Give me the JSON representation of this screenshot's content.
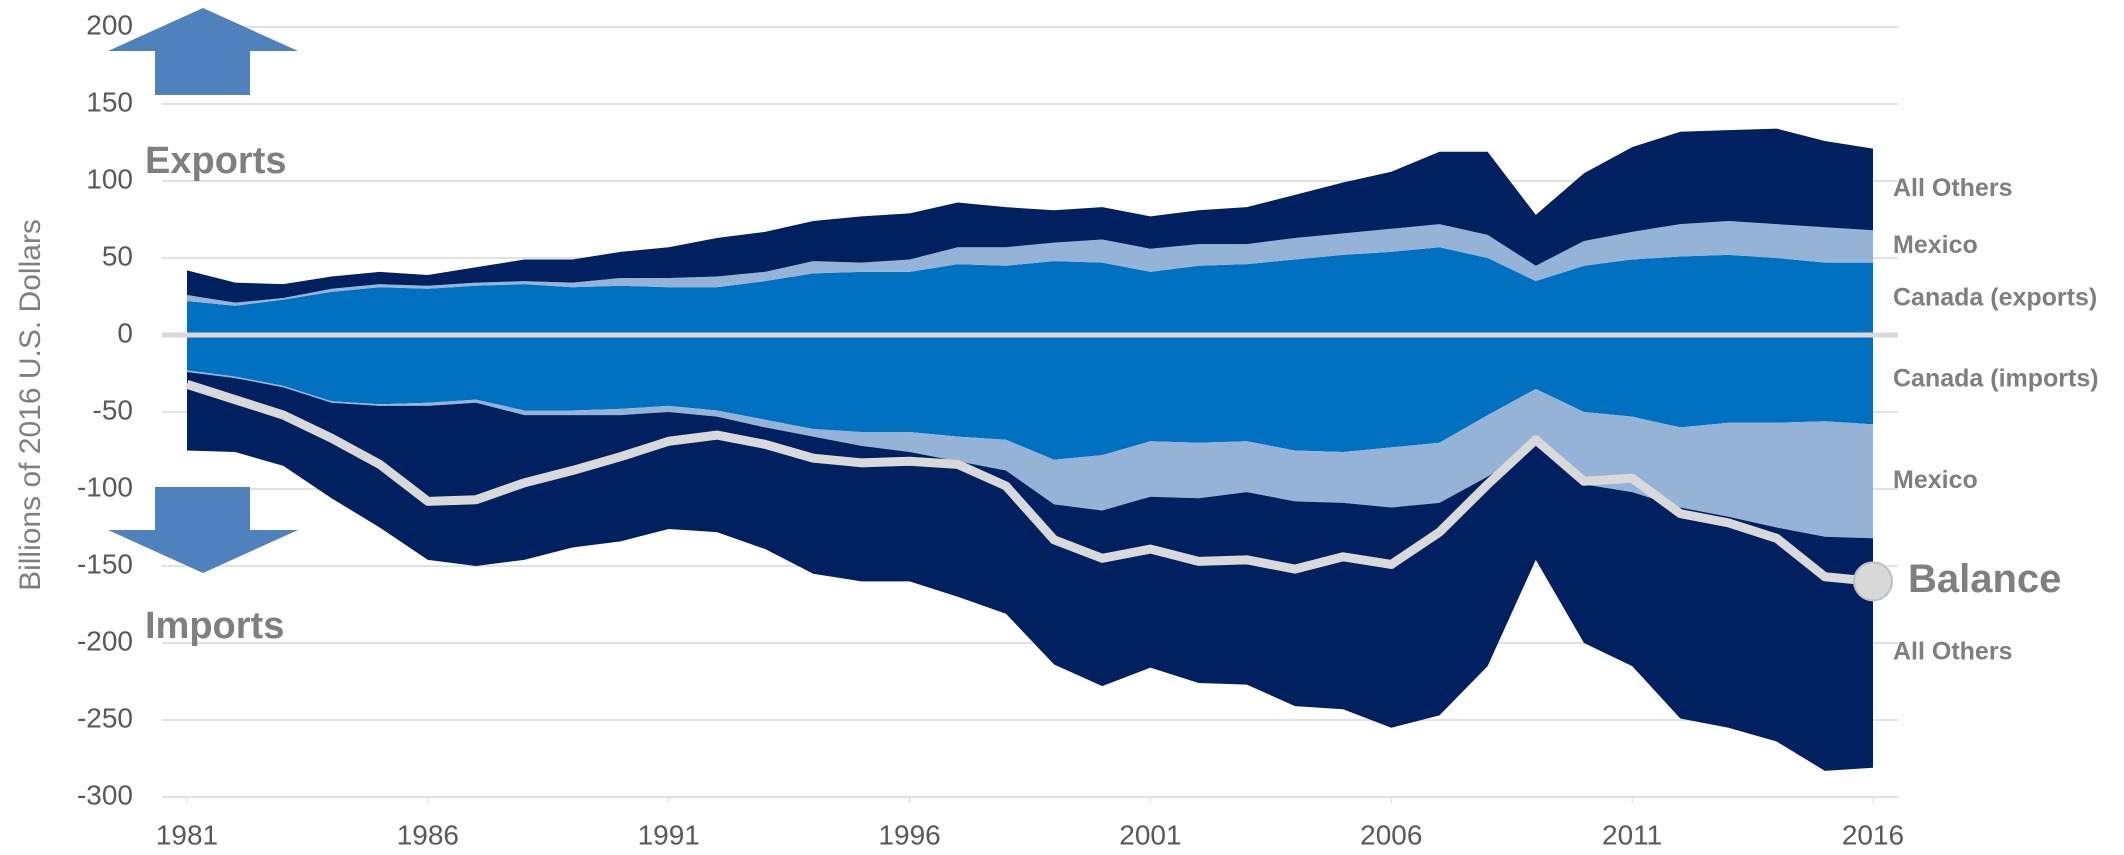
{
  "chart_data": {
    "type": "area",
    "ylabel": "Billions of 2016 U.S. Dollars",
    "annotations": [
      "Exports",
      "Imports"
    ],
    "x": [
      1981,
      1982,
      1983,
      1984,
      1985,
      1986,
      1987,
      1988,
      1989,
      1990,
      1991,
      1992,
      1993,
      1994,
      1995,
      1996,
      1997,
      1998,
      1999,
      2000,
      2001,
      2002,
      2003,
      2004,
      2005,
      2006,
      2007,
      2008,
      2009,
      2010,
      2011,
      2012,
      2013,
      2014,
      2015,
      2016
    ],
    "xlim": [
      1981,
      2016
    ],
    "xticks": [
      1981,
      1986,
      1991,
      1996,
      2001,
      2006,
      2011,
      2016
    ],
    "ylim": [
      -300,
      200
    ],
    "yticks": [
      -300,
      -250,
      -200,
      -150,
      -100,
      -50,
      0,
      50,
      100,
      150,
      200
    ],
    "grid": true,
    "series": [
      {
        "name": "Canada (exports)",
        "color": "#0070c0",
        "values": [
          22,
          19,
          23,
          28,
          31,
          30,
          32,
          33,
          31,
          32,
          31,
          31,
          35,
          40,
          41,
          41,
          46,
          45,
          48,
          47,
          41,
          45,
          46,
          49,
          52,
          54,
          57,
          50,
          35,
          45,
          49,
          51,
          52,
          50,
          47,
          47
        ]
      },
      {
        "name": "Mexico",
        "color": "#95b3d7",
        "values": [
          4,
          2,
          1,
          2,
          2,
          2,
          2,
          2,
          3,
          5,
          6,
          7,
          6,
          8,
          6,
          8,
          11,
          12,
          12,
          15,
          15,
          14,
          13,
          14,
          14,
          15,
          15,
          15,
          10,
          16,
          18,
          21,
          22,
          22,
          23,
          21
        ]
      },
      {
        "name": "All Others",
        "color": "#002060",
        "values": [
          16,
          13,
          9,
          8,
          8,
          7,
          10,
          14,
          15,
          17,
          20,
          25,
          26,
          26,
          30,
          30,
          29,
          26,
          21,
          21,
          21,
          22,
          24,
          28,
          33,
          37,
          47,
          54,
          33,
          44,
          55,
          60,
          59,
          62,
          56,
          53
        ]
      },
      {
        "name": "Canada (imports)",
        "color": "#0070c0",
        "values": [
          -23,
          -27,
          -33,
          -43,
          -45,
          -44,
          -42,
          -49,
          -49,
          -48,
          -46,
          -49,
          -55,
          -61,
          -63,
          -63,
          -66,
          -68,
          -81,
          -78,
          -69,
          -70,
          -69,
          -75,
          -76,
          -73,
          -70,
          -52,
          -35,
          -50,
          -53,
          -60,
          -57,
          -57,
          -56,
          -58
        ]
      },
      {
        "name": "Mexico",
        "color": "#95b3d7",
        "values": [
          -1,
          -1,
          -1,
          -1,
          -1,
          -2,
          -2,
          -3,
          -3,
          -4,
          -4,
          -4,
          -5,
          -5,
          -9,
          -13,
          -16,
          -20,
          -29,
          -36,
          -36,
          -36,
          -33,
          -33,
          -33,
          -39,
          -39,
          -40,
          -37,
          -47,
          -49,
          -52,
          -61,
          -68,
          -75,
          -74
        ]
      },
      {
        "name": "All Others",
        "color": "#002060",
        "values": [
          -51,
          -48,
          -51,
          -62,
          -79,
          -100,
          -106,
          -94,
          -86,
          -82,
          -76,
          -75,
          -79,
          -89,
          -88,
          -84,
          -88,
          -93,
          -104,
          -114,
          -111,
          -120,
          -125,
          -133,
          -134,
          -143,
          -138,
          -123,
          -74,
          -103,
          -113,
          -137,
          -137,
          -139,
          -152,
          -149
        ]
      },
      {
        "name": "Balance",
        "type": "line",
        "color": "#d9d9d9",
        "values": [
          -32,
          -42,
          -52,
          -67,
          -84,
          -108,
          -107,
          -96,
          -88,
          -79,
          -69,
          -65,
          -71,
          -80,
          -83,
          -82,
          -84,
          -98,
          -133,
          -145,
          -139,
          -147,
          -146,
          -152,
          -144,
          -149,
          -128,
          -97,
          -68,
          -95,
          -93,
          -116,
          -122,
          -132,
          -157,
          -160
        ]
      }
    ]
  }
}
